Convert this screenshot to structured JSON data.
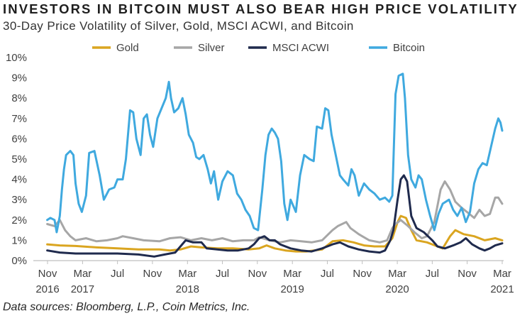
{
  "title": "INVESTORS IN BITCOIN MUST ALSO BEAR HIGH PRICE VOLATILITY",
  "subtitle": "30-Day Price Volatility of Silver, Gold, MSCI ACWI, and Bitcoin",
  "source": "Data sources: Bloomberg, L.P., Coin Metrics, Inc.",
  "chart_data": {
    "type": "line",
    "ylabel": "",
    "xlabel": "",
    "ylim": [
      0,
      10
    ],
    "ytick_format": "percent",
    "xlim": [
      2016.833,
      2021.167
    ],
    "grid": false,
    "legend_position": "top",
    "x_tick_labels": [
      {
        "x": 2016.833,
        "month": "Nov",
        "year": "2016"
      },
      {
        "x": 2017.167,
        "month": "Mar",
        "year": "2017"
      },
      {
        "x": 2017.5,
        "month": "Jul",
        "year": ""
      },
      {
        "x": 2017.833,
        "month": "Nov",
        "year": ""
      },
      {
        "x": 2018.167,
        "month": "Mar",
        "year": "2018"
      },
      {
        "x": 2018.5,
        "month": "Jul",
        "year": ""
      },
      {
        "x": 2018.833,
        "month": "Nov",
        "year": ""
      },
      {
        "x": 2019.167,
        "month": "Mar",
        "year": "2019"
      },
      {
        "x": 2019.5,
        "month": "Jul",
        "year": ""
      },
      {
        "x": 2019.833,
        "month": "Nov",
        "year": ""
      },
      {
        "x": 2020.167,
        "month": "Mar",
        "year": "2020"
      },
      {
        "x": 2020.5,
        "month": "Jul",
        "year": ""
      },
      {
        "x": 2020.833,
        "month": "Nov",
        "year": ""
      },
      {
        "x": 2021.167,
        "month": "Mar",
        "year": "2021"
      }
    ],
    "y_ticks": [
      0,
      1,
      2,
      3,
      4,
      5,
      6,
      7,
      8,
      9,
      10
    ],
    "series": [
      {
        "name": "Gold",
        "color": "#DAA520",
        "points": [
          [
            2016.83,
            0.8
          ],
          [
            2016.95,
            0.75
          ],
          [
            2017.1,
            0.72
          ],
          [
            2017.3,
            0.65
          ],
          [
            2017.5,
            0.6
          ],
          [
            2017.7,
            0.55
          ],
          [
            2017.9,
            0.55
          ],
          [
            2018.0,
            0.5
          ],
          [
            2018.1,
            0.55
          ],
          [
            2018.2,
            0.7
          ],
          [
            2018.3,
            0.65
          ],
          [
            2018.45,
            0.6
          ],
          [
            2018.6,
            0.6
          ],
          [
            2018.75,
            0.55
          ],
          [
            2018.85,
            0.6
          ],
          [
            2018.92,
            0.75
          ],
          [
            2019.0,
            0.6
          ],
          [
            2019.1,
            0.5
          ],
          [
            2019.2,
            0.45
          ],
          [
            2019.3,
            0.45
          ],
          [
            2019.45,
            0.55
          ],
          [
            2019.55,
            0.95
          ],
          [
            2019.65,
            1.0
          ],
          [
            2019.75,
            0.9
          ],
          [
            2019.85,
            0.75
          ],
          [
            2019.95,
            0.7
          ],
          [
            2020.05,
            0.7
          ],
          [
            2020.12,
            1.1
          ],
          [
            2020.17,
            1.9
          ],
          [
            2020.2,
            2.2
          ],
          [
            2020.25,
            2.1
          ],
          [
            2020.3,
            1.5
          ],
          [
            2020.35,
            1.0
          ],
          [
            2020.45,
            0.9
          ],
          [
            2020.55,
            0.7
          ],
          [
            2020.6,
            0.6
          ],
          [
            2020.67,
            1.2
          ],
          [
            2020.72,
            1.5
          ],
          [
            2020.8,
            1.3
          ],
          [
            2020.9,
            1.2
          ],
          [
            2021.0,
            1.0
          ],
          [
            2021.1,
            1.1
          ],
          [
            2021.167,
            1.0
          ]
        ]
      },
      {
        "name": "Silver",
        "color": "#A6A6A6",
        "points": [
          [
            2016.83,
            1.8
          ],
          [
            2016.9,
            1.7
          ],
          [
            2016.95,
            2.0
          ],
          [
            2017.0,
            1.5
          ],
          [
            2017.05,
            1.2
          ],
          [
            2017.1,
            1.0
          ],
          [
            2017.2,
            1.1
          ],
          [
            2017.3,
            0.95
          ],
          [
            2017.4,
            1.0
          ],
          [
            2017.5,
            1.1
          ],
          [
            2017.55,
            1.2
          ],
          [
            2017.65,
            1.1
          ],
          [
            2017.75,
            1.0
          ],
          [
            2017.9,
            0.95
          ],
          [
            2018.0,
            1.1
          ],
          [
            2018.1,
            1.15
          ],
          [
            2018.2,
            1.0
          ],
          [
            2018.3,
            1.1
          ],
          [
            2018.4,
            1.0
          ],
          [
            2018.5,
            1.1
          ],
          [
            2018.6,
            0.95
          ],
          [
            2018.7,
            1.0
          ],
          [
            2018.8,
            1.0
          ],
          [
            2018.85,
            1.15
          ],
          [
            2018.95,
            1.0
          ],
          [
            2019.05,
            0.9
          ],
          [
            2019.15,
            1.0
          ],
          [
            2019.25,
            0.95
          ],
          [
            2019.35,
            0.9
          ],
          [
            2019.45,
            1.0
          ],
          [
            2019.55,
            1.5
          ],
          [
            2019.6,
            1.7
          ],
          [
            2019.68,
            1.9
          ],
          [
            2019.72,
            1.6
          ],
          [
            2019.8,
            1.3
          ],
          [
            2019.9,
            1.0
          ],
          [
            2020.0,
            0.9
          ],
          [
            2020.07,
            1.0
          ],
          [
            2020.12,
            1.6
          ],
          [
            2020.15,
            1.8
          ],
          [
            2020.2,
            2.0
          ],
          [
            2020.27,
            1.7
          ],
          [
            2020.33,
            1.4
          ],
          [
            2020.4,
            1.1
          ],
          [
            2020.45,
            1.2
          ],
          [
            2020.52,
            1.9
          ],
          [
            2020.58,
            3.5
          ],
          [
            2020.62,
            3.9
          ],
          [
            2020.67,
            3.5
          ],
          [
            2020.72,
            2.9
          ],
          [
            2020.78,
            2.6
          ],
          [
            2020.83,
            2.4
          ],
          [
            2020.9,
            2.1
          ],
          [
            2020.95,
            2.5
          ],
          [
            2021.0,
            2.2
          ],
          [
            2021.05,
            2.3
          ],
          [
            2021.1,
            3.1
          ],
          [
            2021.13,
            3.1
          ],
          [
            2021.167,
            2.8
          ]
        ]
      },
      {
        "name": "MSCI ACWI",
        "color": "#1F2A4D",
        "points": [
          [
            2016.83,
            0.5
          ],
          [
            2016.95,
            0.4
          ],
          [
            2017.1,
            0.35
          ],
          [
            2017.3,
            0.35
          ],
          [
            2017.5,
            0.35
          ],
          [
            2017.7,
            0.3
          ],
          [
            2017.85,
            0.2
          ],
          [
            2017.95,
            0.3
          ],
          [
            2018.05,
            0.4
          ],
          [
            2018.1,
            0.7
          ],
          [
            2018.15,
            1.0
          ],
          [
            2018.22,
            0.9
          ],
          [
            2018.3,
            0.9
          ],
          [
            2018.35,
            0.6
          ],
          [
            2018.45,
            0.55
          ],
          [
            2018.55,
            0.5
          ],
          [
            2018.65,
            0.5
          ],
          [
            2018.75,
            0.6
          ],
          [
            2018.8,
            0.8
          ],
          [
            2018.85,
            1.1
          ],
          [
            2018.9,
            1.2
          ],
          [
            2018.95,
            1.0
          ],
          [
            2019.0,
            1.0
          ],
          [
            2019.05,
            0.8
          ],
          [
            2019.15,
            0.6
          ],
          [
            2019.25,
            0.5
          ],
          [
            2019.35,
            0.45
          ],
          [
            2019.45,
            0.6
          ],
          [
            2019.55,
            0.8
          ],
          [
            2019.62,
            0.9
          ],
          [
            2019.7,
            0.7
          ],
          [
            2019.8,
            0.55
          ],
          [
            2019.9,
            0.45
          ],
          [
            2020.0,
            0.4
          ],
          [
            2020.05,
            0.5
          ],
          [
            2020.1,
            1.0
          ],
          [
            2020.13,
            1.5
          ],
          [
            2020.17,
            3.0
          ],
          [
            2020.2,
            4.0
          ],
          [
            2020.23,
            4.2
          ],
          [
            2020.26,
            3.9
          ],
          [
            2020.3,
            2.2
          ],
          [
            2020.35,
            1.6
          ],
          [
            2020.42,
            1.4
          ],
          [
            2020.5,
            1.0
          ],
          [
            2020.55,
            0.7
          ],
          [
            2020.62,
            0.6
          ],
          [
            2020.7,
            0.75
          ],
          [
            2020.77,
            0.9
          ],
          [
            2020.82,
            1.1
          ],
          [
            2020.88,
            0.8
          ],
          [
            2020.95,
            0.6
          ],
          [
            2021.0,
            0.5
          ],
          [
            2021.05,
            0.6
          ],
          [
            2021.1,
            0.75
          ],
          [
            2021.167,
            0.85
          ]
        ]
      },
      {
        "name": "Bitcoin",
        "color": "#3FA9DF",
        "points": [
          [
            2016.83,
            2.0
          ],
          [
            2016.86,
            2.1
          ],
          [
            2016.9,
            2.0
          ],
          [
            2016.92,
            1.4
          ],
          [
            2016.95,
            2.2
          ],
          [
            2016.97,
            3.5
          ],
          [
            2016.99,
            4.5
          ],
          [
            2017.01,
            5.2
          ],
          [
            2017.05,
            5.4
          ],
          [
            2017.08,
            5.2
          ],
          [
            2017.1,
            3.8
          ],
          [
            2017.13,
            2.8
          ],
          [
            2017.16,
            2.4
          ],
          [
            2017.2,
            3.2
          ],
          [
            2017.23,
            5.3
          ],
          [
            2017.28,
            5.4
          ],
          [
            2017.33,
            4.2
          ],
          [
            2017.37,
            3.0
          ],
          [
            2017.42,
            3.5
          ],
          [
            2017.47,
            3.6
          ],
          [
            2017.5,
            4.0
          ],
          [
            2017.55,
            4.0
          ],
          [
            2017.58,
            5.0
          ],
          [
            2017.62,
            7.4
          ],
          [
            2017.65,
            7.3
          ],
          [
            2017.68,
            6.0
          ],
          [
            2017.72,
            5.2
          ],
          [
            2017.75,
            7.0
          ],
          [
            2017.78,
            7.2
          ],
          [
            2017.81,
            6.2
          ],
          [
            2017.84,
            5.6
          ],
          [
            2017.88,
            7.0
          ],
          [
            2017.92,
            7.5
          ],
          [
            2017.96,
            8.0
          ],
          [
            2017.99,
            8.8
          ],
          [
            2018.01,
            8.0
          ],
          [
            2018.04,
            7.3
          ],
          [
            2018.08,
            7.5
          ],
          [
            2018.12,
            8.0
          ],
          [
            2018.15,
            7.2
          ],
          [
            2018.18,
            6.2
          ],
          [
            2018.22,
            5.8
          ],
          [
            2018.25,
            5.1
          ],
          [
            2018.28,
            5.0
          ],
          [
            2018.32,
            5.2
          ],
          [
            2018.36,
            4.5
          ],
          [
            2018.39,
            3.8
          ],
          [
            2018.42,
            4.4
          ],
          [
            2018.46,
            3.0
          ],
          [
            2018.5,
            3.9
          ],
          [
            2018.55,
            4.4
          ],
          [
            2018.6,
            4.2
          ],
          [
            2018.64,
            3.3
          ],
          [
            2018.68,
            3.0
          ],
          [
            2018.72,
            2.5
          ],
          [
            2018.76,
            2.2
          ],
          [
            2018.8,
            1.6
          ],
          [
            2018.84,
            1.5
          ],
          [
            2018.88,
            3.5
          ],
          [
            2018.91,
            5.2
          ],
          [
            2018.94,
            6.2
          ],
          [
            2018.97,
            6.5
          ],
          [
            2019.0,
            6.3
          ],
          [
            2019.03,
            6.0
          ],
          [
            2019.06,
            4.9
          ],
          [
            2019.09,
            2.8
          ],
          [
            2019.12,
            2.0
          ],
          [
            2019.15,
            3.0
          ],
          [
            2019.2,
            2.4
          ],
          [
            2019.24,
            4.2
          ],
          [
            2019.28,
            5.2
          ],
          [
            2019.33,
            5.0
          ],
          [
            2019.37,
            4.9
          ],
          [
            2019.4,
            6.6
          ],
          [
            2019.45,
            6.5
          ],
          [
            2019.48,
            7.5
          ],
          [
            2019.51,
            7.4
          ],
          [
            2019.54,
            6.2
          ],
          [
            2019.58,
            5.2
          ],
          [
            2019.62,
            4.2
          ],
          [
            2019.65,
            4.0
          ],
          [
            2019.7,
            3.7
          ],
          [
            2019.73,
            4.5
          ],
          [
            2019.76,
            4.2
          ],
          [
            2019.8,
            3.2
          ],
          [
            2019.85,
            3.8
          ],
          [
            2019.9,
            3.5
          ],
          [
            2019.95,
            3.3
          ],
          [
            2020.0,
            3.0
          ],
          [
            2020.05,
            3.1
          ],
          [
            2020.09,
            2.9
          ],
          [
            2020.12,
            3.2
          ],
          [
            2020.15,
            8.2
          ],
          [
            2020.18,
            9.1
          ],
          [
            2020.22,
            9.2
          ],
          [
            2020.24,
            8.0
          ],
          [
            2020.27,
            5.2
          ],
          [
            2020.3,
            4.0
          ],
          [
            2020.34,
            3.6
          ],
          [
            2020.37,
            4.2
          ],
          [
            2020.4,
            4.0
          ],
          [
            2020.44,
            3.0
          ],
          [
            2020.48,
            2.2
          ],
          [
            2020.52,
            1.5
          ],
          [
            2020.56,
            2.3
          ],
          [
            2020.6,
            2.8
          ],
          [
            2020.66,
            3.0
          ],
          [
            2020.7,
            2.5
          ],
          [
            2020.74,
            2.2
          ],
          [
            2020.78,
            2.6
          ],
          [
            2020.82,
            1.9
          ],
          [
            2020.86,
            2.4
          ],
          [
            2020.9,
            3.8
          ],
          [
            2020.94,
            4.5
          ],
          [
            2020.98,
            4.8
          ],
          [
            2021.02,
            4.7
          ],
          [
            2021.06,
            5.6
          ],
          [
            2021.1,
            6.5
          ],
          [
            2021.13,
            7.0
          ],
          [
            2021.15,
            6.8
          ],
          [
            2021.167,
            6.4
          ]
        ]
      }
    ]
  }
}
